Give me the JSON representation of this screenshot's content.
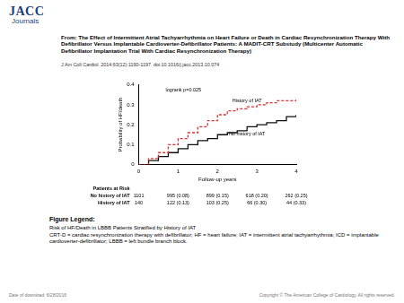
{
  "header": {
    "brand": "JACC",
    "brand_sub": "Journals",
    "title": "From: The Effect of Intermittent Atrial Tachyarrhythmia on Heart Failure or Death in Cardiac Resynchronization Therapy With Defibrillator Versus Implantable Cardioverter-Defibrillator Patients: A MADIT-CRT Substudy (Multicenter Automatic Defibrillator Implantation Trial With Cardiac Resynchronization Therapy)",
    "citation": "J Am Coll Cardiol. 2014;63(12):1190-1197. doi:10.1016/j.jacc.2013.10.074"
  },
  "chart_data": {
    "type": "line",
    "x_label": "Follow-up years",
    "y_label": "Probability of HF/death",
    "annotations": [
      "logrank p=0.025"
    ],
    "x": [
      0,
      0.25,
      0.5,
      0.75,
      1,
      1.25,
      1.5,
      1.75,
      2,
      2.25,
      2.5,
      2.75,
      3,
      3.25,
      3.5,
      3.75,
      4
    ],
    "series": [
      {
        "name": "History of IAT",
        "color": "#e03030",
        "line_style": "dashed",
        "marker": "none",
        "values": [
          0,
          0.03,
          0.06,
          0.1,
          0.13,
          0.16,
          0.19,
          0.22,
          0.25,
          0.27,
          0.28,
          0.29,
          0.3,
          0.31,
          0.32,
          0.32,
          0.33
        ]
      },
      {
        "name": "No history of IAT",
        "color": "#111111",
        "line_style": "solid",
        "marker": "none",
        "values": [
          0,
          0.02,
          0.04,
          0.06,
          0.08,
          0.1,
          0.12,
          0.13,
          0.15,
          0.16,
          0.17,
          0.19,
          0.2,
          0.21,
          0.22,
          0.24,
          0.25
        ]
      }
    ],
    "xlim": [
      0,
      4
    ],
    "xticks": [
      0,
      1,
      2,
      3,
      4
    ],
    "ylim": [
      0,
      0.4
    ],
    "yticks": [
      0,
      0.1,
      0.2,
      0.3,
      0.4
    ],
    "grid": false,
    "risk_table": {
      "title": "Patients at Risk",
      "rows": [
        [
          "No history of IAT",
          "1101",
          "995 (0.08)",
          "899 (0.15)",
          "618 (0.20)",
          "262 (0.25)"
        ],
        [
          "History of IAT",
          "140",
          "122 (0.13)",
          "103 (0.25)",
          "66 (0.30)",
          "44 (0.33)"
        ]
      ]
    }
  },
  "figure_legend": {
    "heading": "Figure Legend:",
    "title": "Risk of HF/Death in LBBB Patients Stratified by History of IAT",
    "text": "CRT-D = cardiac resynchronization therapy with defibrillator; HF = heart failure; IAT = intermittent atrial tachyarrhythmia; ICD = implantable cardioverter-defibrillator; LBBB = left bundle branch block."
  },
  "footer": {
    "left": "Date of download: 6/28/2016",
    "right": "Copyright © The American College of Cardiology. All rights reserved."
  }
}
